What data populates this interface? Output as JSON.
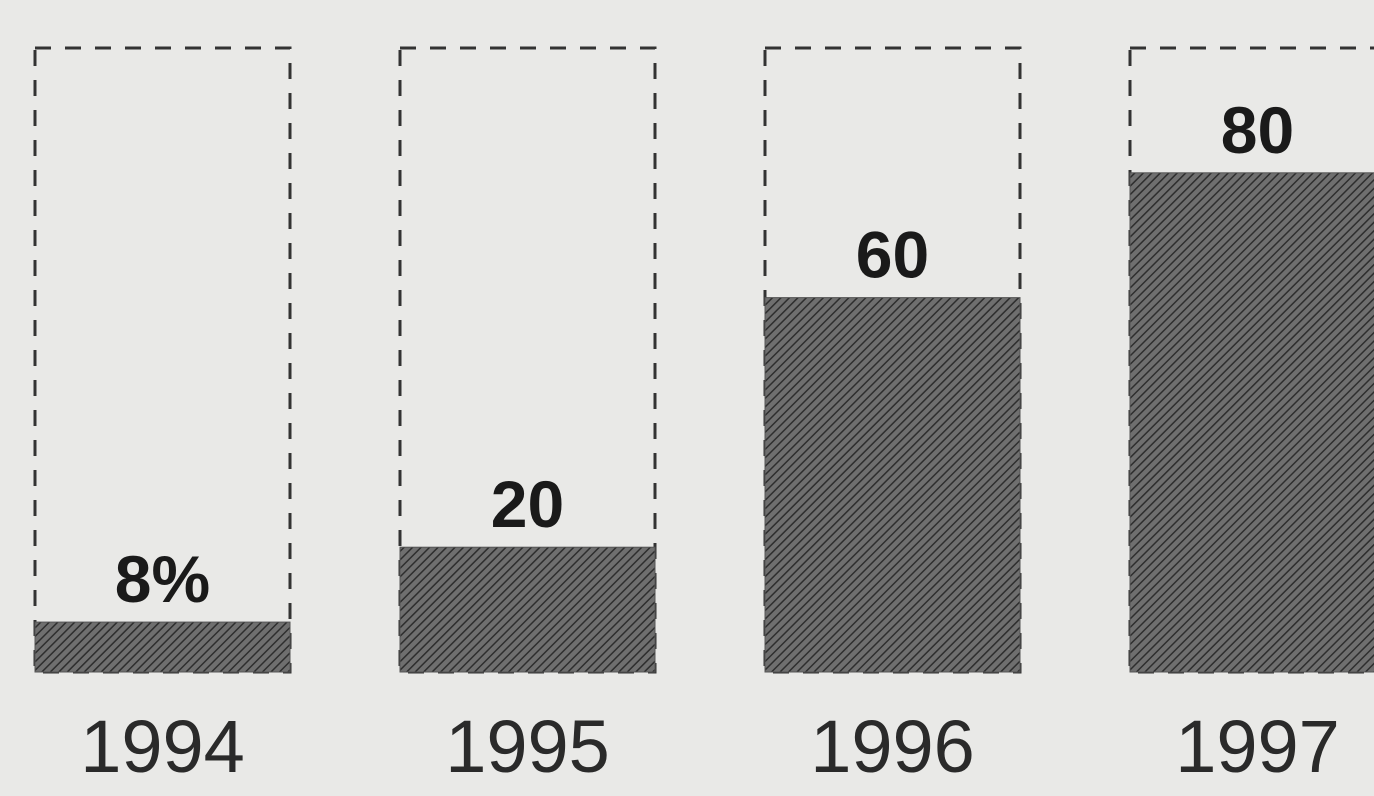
{
  "chart_data": {
    "type": "bar",
    "categories": [
      "1994",
      "1995",
      "1996",
      "1997"
    ],
    "values": [
      8,
      20,
      60,
      80
    ],
    "value_labels": [
      "8%",
      "20",
      "60",
      "80"
    ],
    "color": "#555555",
    "ylim": [
      0,
      100
    ]
  }
}
